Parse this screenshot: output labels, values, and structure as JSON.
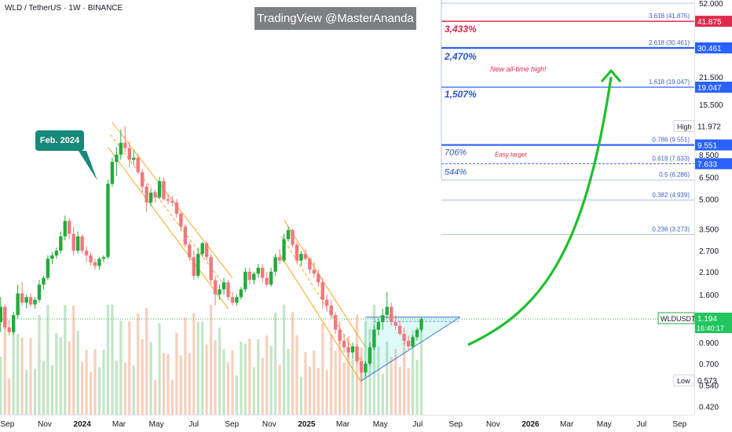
{
  "header": {
    "symbol": "WLD / TetherUS",
    "interval": "1W",
    "exchange": "BINANCE"
  },
  "watermark": "TradingView @MasterAnanda",
  "callout": "Feb. 2024",
  "annotations": {
    "ath": "New all-time high!",
    "easy": "Easy target"
  },
  "colors": {
    "up": "#22ab3a",
    "down": "#f0787d",
    "fib": "#5b7bd6",
    "blue_line": "#2962ff",
    "red_line": "#e0294e",
    "arrow": "#1fbf2d",
    "channel": "#f5a623",
    "triangle": "#3a6fd8",
    "price_label": "#22c55e"
  },
  "chart_data": {
    "type": "candlestick",
    "title": "WLD / TetherUS · 1W · BINANCE",
    "y_scale": "log",
    "y_range": [
      0.38,
      54
    ],
    "y_ticks": [
      "52.000",
      "21.500",
      "15.500",
      "8.500",
      "6.500",
      "5.000",
      "3.500",
      "2.700",
      "2.100",
      "1.600",
      "0.900",
      "0.700",
      "0.540",
      "0.420"
    ],
    "x_range": [
      "2023-08-20",
      "2026-09-25"
    ],
    "x_ticks": [
      "Sep",
      "Nov",
      "2024",
      "Mar",
      "May",
      "Jul",
      "Sep",
      "Nov",
      "2025",
      "Mar",
      "May",
      "Jul",
      "Sep",
      "Nov",
      "2026",
      "Mar",
      "May",
      "Jul",
      "Sep"
    ],
    "candles": [
      {
        "date": "2023-08-21",
        "o": 1.15,
        "h": 1.55,
        "l": 1.02,
        "c": 1.38
      },
      {
        "date": "2023-08-28",
        "o": 1.38,
        "h": 1.42,
        "l": 1.05,
        "c": 1.08
      },
      {
        "date": "2023-09-04",
        "o": 1.08,
        "h": 1.18,
        "l": 0.98,
        "c": 1.02
      },
      {
        "date": "2023-09-11",
        "o": 1.02,
        "h": 1.3,
        "l": 0.99,
        "c": 1.25
      },
      {
        "date": "2023-09-18",
        "o": 1.25,
        "h": 1.8,
        "l": 1.2,
        "c": 1.62
      },
      {
        "date": "2023-09-25",
        "o": 1.62,
        "h": 1.85,
        "l": 1.4,
        "c": 1.45
      },
      {
        "date": "2023-10-02",
        "o": 1.45,
        "h": 1.6,
        "l": 1.35,
        "c": 1.55
      },
      {
        "date": "2023-10-09",
        "o": 1.55,
        "h": 1.62,
        "l": 1.38,
        "c": 1.42
      },
      {
        "date": "2023-10-16",
        "o": 1.42,
        "h": 1.55,
        "l": 1.35,
        "c": 1.5
      },
      {
        "date": "2023-10-23",
        "o": 1.5,
        "h": 1.9,
        "l": 1.45,
        "c": 1.8
      },
      {
        "date": "2023-10-30",
        "o": 1.8,
        "h": 2.0,
        "l": 1.7,
        "c": 1.95
      },
      {
        "date": "2023-11-06",
        "o": 1.95,
        "h": 2.55,
        "l": 1.9,
        "c": 2.45
      },
      {
        "date": "2023-11-13",
        "o": 2.45,
        "h": 2.65,
        "l": 2.3,
        "c": 2.55
      },
      {
        "date": "2023-11-20",
        "o": 2.55,
        "h": 2.8,
        "l": 2.45,
        "c": 2.7
      },
      {
        "date": "2023-11-27",
        "o": 2.7,
        "h": 3.4,
        "l": 2.6,
        "c": 3.2
      },
      {
        "date": "2023-12-04",
        "o": 3.2,
        "h": 4.1,
        "l": 3.05,
        "c": 3.85
      },
      {
        "date": "2023-12-11",
        "o": 3.85,
        "h": 4.0,
        "l": 3.1,
        "c": 3.3
      },
      {
        "date": "2023-12-18",
        "o": 3.3,
        "h": 3.6,
        "l": 2.55,
        "c": 2.7
      },
      {
        "date": "2023-12-25",
        "o": 2.7,
        "h": 3.4,
        "l": 2.6,
        "c": 3.2
      },
      {
        "date": "2024-01-01",
        "o": 3.2,
        "h": 3.3,
        "l": 2.6,
        "c": 2.7
      },
      {
        "date": "2024-01-08",
        "o": 2.7,
        "h": 2.85,
        "l": 2.35,
        "c": 2.55
      },
      {
        "date": "2024-01-15",
        "o": 2.55,
        "h": 2.65,
        "l": 2.25,
        "c": 2.35
      },
      {
        "date": "2024-01-22",
        "o": 2.35,
        "h": 2.45,
        "l": 2.15,
        "c": 2.25
      },
      {
        "date": "2024-01-29",
        "o": 2.25,
        "h": 2.5,
        "l": 2.15,
        "c": 2.45
      },
      {
        "date": "2024-02-05",
        "o": 2.45,
        "h": 2.55,
        "l": 2.35,
        "c": 2.5
      },
      {
        "date": "2024-02-12",
        "o": 2.5,
        "h": 6.3,
        "l": 2.45,
        "c": 6.0
      },
      {
        "date": "2024-02-19",
        "o": 6.0,
        "h": 8.2,
        "l": 5.8,
        "c": 7.8
      },
      {
        "date": "2024-02-26",
        "o": 7.8,
        "h": 9.3,
        "l": 6.6,
        "c": 8.5
      },
      {
        "date": "2024-03-04",
        "o": 8.5,
        "h": 11.5,
        "l": 8.0,
        "c": 9.8
      },
      {
        "date": "2024-03-11",
        "o": 9.8,
        "h": 11.97,
        "l": 8.8,
        "c": 9.2
      },
      {
        "date": "2024-03-18",
        "o": 9.2,
        "h": 10.0,
        "l": 7.3,
        "c": 8.0
      },
      {
        "date": "2024-03-25",
        "o": 8.0,
        "h": 9.0,
        "l": 7.5,
        "c": 8.2
      },
      {
        "date": "2024-04-01",
        "o": 8.2,
        "h": 8.6,
        "l": 6.7,
        "c": 6.9
      },
      {
        "date": "2024-04-08",
        "o": 6.9,
        "h": 7.2,
        "l": 5.4,
        "c": 5.8
      },
      {
        "date": "2024-04-15",
        "o": 5.8,
        "h": 6.0,
        "l": 4.3,
        "c": 4.8
      },
      {
        "date": "2024-04-22",
        "o": 4.8,
        "h": 5.6,
        "l": 4.6,
        "c": 5.4
      },
      {
        "date": "2024-04-29",
        "o": 5.4,
        "h": 5.6,
        "l": 4.8,
        "c": 5.1
      },
      {
        "date": "2024-05-06",
        "o": 5.1,
        "h": 6.5,
        "l": 5.0,
        "c": 6.2
      },
      {
        "date": "2024-05-13",
        "o": 6.2,
        "h": 6.5,
        "l": 4.9,
        "c": 5.0
      },
      {
        "date": "2024-05-20",
        "o": 5.0,
        "h": 5.3,
        "l": 4.7,
        "c": 4.9
      },
      {
        "date": "2024-05-27",
        "o": 4.9,
        "h": 5.2,
        "l": 4.6,
        "c": 4.8
      },
      {
        "date": "2024-06-03",
        "o": 4.8,
        "h": 5.0,
        "l": 4.0,
        "c": 4.2
      },
      {
        "date": "2024-06-10",
        "o": 4.2,
        "h": 4.3,
        "l": 3.4,
        "c": 3.6
      },
      {
        "date": "2024-06-17",
        "o": 3.6,
        "h": 3.7,
        "l": 2.8,
        "c": 2.9
      },
      {
        "date": "2024-06-24",
        "o": 2.9,
        "h": 3.0,
        "l": 2.4,
        "c": 2.5
      },
      {
        "date": "2024-07-01",
        "o": 2.5,
        "h": 2.7,
        "l": 1.9,
        "c": 2.0
      },
      {
        "date": "2024-07-08",
        "o": 2.0,
        "h": 2.8,
        "l": 1.95,
        "c": 2.6
      },
      {
        "date": "2024-07-15",
        "o": 2.6,
        "h": 3.0,
        "l": 2.5,
        "c": 2.95
      },
      {
        "date": "2024-07-22",
        "o": 2.95,
        "h": 3.0,
        "l": 2.4,
        "c": 2.5
      },
      {
        "date": "2024-07-29",
        "o": 2.5,
        "h": 2.6,
        "l": 1.8,
        "c": 1.9
      },
      {
        "date": "2024-08-05",
        "o": 1.9,
        "h": 2.0,
        "l": 1.4,
        "c": 1.6
      },
      {
        "date": "2024-08-12",
        "o": 1.6,
        "h": 1.8,
        "l": 1.5,
        "c": 1.7
      },
      {
        "date": "2024-08-19",
        "o": 1.7,
        "h": 1.95,
        "l": 1.6,
        "c": 1.85
      },
      {
        "date": "2024-08-26",
        "o": 1.85,
        "h": 1.9,
        "l": 1.5,
        "c": 1.55
      },
      {
        "date": "2024-09-02",
        "o": 1.55,
        "h": 1.65,
        "l": 1.4,
        "c": 1.45
      },
      {
        "date": "2024-09-09",
        "o": 1.45,
        "h": 1.6,
        "l": 1.4,
        "c": 1.55
      },
      {
        "date": "2024-09-16",
        "o": 1.55,
        "h": 1.75,
        "l": 1.5,
        "c": 1.7
      },
      {
        "date": "2024-09-23",
        "o": 1.7,
        "h": 2.2,
        "l": 1.65,
        "c": 2.1
      },
      {
        "date": "2024-09-30",
        "o": 2.1,
        "h": 2.2,
        "l": 1.8,
        "c": 1.9
      },
      {
        "date": "2024-10-07",
        "o": 1.9,
        "h": 2.1,
        "l": 1.8,
        "c": 2.05
      },
      {
        "date": "2024-10-14",
        "o": 2.05,
        "h": 2.3,
        "l": 1.95,
        "c": 2.2
      },
      {
        "date": "2024-10-21",
        "o": 2.2,
        "h": 2.3,
        "l": 1.85,
        "c": 1.95
      },
      {
        "date": "2024-10-28",
        "o": 1.95,
        "h": 2.1,
        "l": 1.75,
        "c": 1.8
      },
      {
        "date": "2024-11-04",
        "o": 1.8,
        "h": 2.2,
        "l": 1.75,
        "c": 2.1
      },
      {
        "date": "2024-11-11",
        "o": 2.1,
        "h": 2.6,
        "l": 2.0,
        "c": 2.5
      },
      {
        "date": "2024-11-18",
        "o": 2.5,
        "h": 2.75,
        "l": 2.3,
        "c": 2.4
      },
      {
        "date": "2024-11-25",
        "o": 2.4,
        "h": 3.3,
        "l": 2.35,
        "c": 3.1
      },
      {
        "date": "2024-12-02",
        "o": 3.1,
        "h": 3.6,
        "l": 3.0,
        "c": 3.45
      },
      {
        "date": "2024-12-09",
        "o": 3.45,
        "h": 3.5,
        "l": 2.8,
        "c": 2.9
      },
      {
        "date": "2024-12-16",
        "o": 2.9,
        "h": 3.0,
        "l": 2.3,
        "c": 2.4
      },
      {
        "date": "2024-12-23",
        "o": 2.4,
        "h": 2.7,
        "l": 2.25,
        "c": 2.6
      },
      {
        "date": "2024-12-30",
        "o": 2.6,
        "h": 2.75,
        "l": 2.4,
        "c": 2.45
      },
      {
        "date": "2025-01-06",
        "o": 2.45,
        "h": 2.5,
        "l": 2.05,
        "c": 2.15
      },
      {
        "date": "2025-01-13",
        "o": 2.15,
        "h": 2.35,
        "l": 1.95,
        "c": 2.05
      },
      {
        "date": "2025-01-20",
        "o": 2.05,
        "h": 2.15,
        "l": 1.75,
        "c": 1.85
      },
      {
        "date": "2025-01-27",
        "o": 1.85,
        "h": 1.95,
        "l": 1.35,
        "c": 1.5
      },
      {
        "date": "2025-02-03",
        "o": 1.5,
        "h": 1.6,
        "l": 1.3,
        "c": 1.4
      },
      {
        "date": "2025-02-10",
        "o": 1.4,
        "h": 1.5,
        "l": 1.2,
        "c": 1.25
      },
      {
        "date": "2025-02-17",
        "o": 1.25,
        "h": 1.3,
        "l": 1.0,
        "c": 1.05
      },
      {
        "date": "2025-02-24",
        "o": 1.05,
        "h": 1.15,
        "l": 0.88,
        "c": 0.92
      },
      {
        "date": "2025-03-03",
        "o": 0.92,
        "h": 1.0,
        "l": 0.8,
        "c": 0.85
      },
      {
        "date": "2025-03-10",
        "o": 0.85,
        "h": 0.92,
        "l": 0.75,
        "c": 0.8
      },
      {
        "date": "2025-03-17",
        "o": 0.8,
        "h": 0.9,
        "l": 0.74,
        "c": 0.86
      },
      {
        "date": "2025-03-24",
        "o": 0.86,
        "h": 0.88,
        "l": 0.7,
        "c": 0.72
      },
      {
        "date": "2025-03-31",
        "o": 0.72,
        "h": 0.76,
        "l": 0.573,
        "c": 0.63
      },
      {
        "date": "2025-04-07",
        "o": 0.63,
        "h": 0.72,
        "l": 0.6,
        "c": 0.7
      },
      {
        "date": "2025-04-14",
        "o": 0.7,
        "h": 0.9,
        "l": 0.68,
        "c": 0.85
      },
      {
        "date": "2025-04-21",
        "o": 0.85,
        "h": 1.1,
        "l": 0.82,
        "c": 1.05
      },
      {
        "date": "2025-04-28",
        "o": 1.05,
        "h": 1.2,
        "l": 0.98,
        "c": 1.15
      },
      {
        "date": "2025-05-05",
        "o": 1.15,
        "h": 1.35,
        "l": 1.05,
        "c": 1.25
      },
      {
        "date": "2025-05-12",
        "o": 1.25,
        "h": 1.65,
        "l": 1.2,
        "c": 1.38
      },
      {
        "date": "2025-05-19",
        "o": 1.38,
        "h": 1.45,
        "l": 1.1,
        "c": 1.15
      },
      {
        "date": "2025-05-26",
        "o": 1.15,
        "h": 1.25,
        "l": 1.05,
        "c": 1.1
      },
      {
        "date": "2025-06-02",
        "o": 1.1,
        "h": 1.18,
        "l": 0.98,
        "c": 1.0
      },
      {
        "date": "2025-06-09",
        "o": 1.0,
        "h": 1.08,
        "l": 0.88,
        "c": 0.92
      },
      {
        "date": "2025-06-16",
        "o": 0.92,
        "h": 0.98,
        "l": 0.82,
        "c": 0.86
      },
      {
        "date": "2025-06-23",
        "o": 0.86,
        "h": 0.98,
        "l": 0.84,
        "c": 0.96
      },
      {
        "date": "2025-06-30",
        "o": 0.96,
        "h": 1.08,
        "l": 0.92,
        "c": 1.05
      },
      {
        "date": "2025-07-07",
        "o": 1.05,
        "h": 1.22,
        "l": 1.02,
        "c": 1.194
      }
    ],
    "fib_levels": [
      {
        "label": "3.618 (41.875)",
        "value": 41.875
      },
      {
        "label": "2.618 (30.461)",
        "value": 30.461
      },
      {
        "label": "1.618 (19.047)",
        "value": 19.047
      },
      {
        "label": "0.786 (9.551)",
        "value": 9.551
      },
      {
        "label": "0.618 (7.633)",
        "value": 7.633
      },
      {
        "label": "0.5 (6.286)",
        "value": 6.286
      },
      {
        "label": "0.382 (4.939)",
        "value": 4.939
      },
      {
        "label": "0.236 (3.273)",
        "value": 3.273
      }
    ],
    "targets": [
      {
        "label": "3,433%",
        "value": 41.875,
        "color": "red"
      },
      {
        "label": "2,470%",
        "value": 30.461,
        "color": "blue"
      },
      {
        "label": "1,507%",
        "value": 19.047,
        "color": "blue"
      },
      {
        "label": "706%",
        "value": 9.551,
        "color": "blue"
      },
      {
        "label": "544%",
        "value": 7.633,
        "color": "blue"
      }
    ],
    "price_tags": [
      {
        "text": "41.875",
        "value": 41.875,
        "style": "red"
      },
      {
        "text": "30.461",
        "value": 30.461,
        "style": "blue"
      },
      {
        "text": "19.047",
        "value": 19.047,
        "style": "blue"
      },
      {
        "text": "9.551",
        "value": 9.551,
        "style": "blue"
      },
      {
        "text": "7.633",
        "value": 7.633,
        "style": "blue"
      }
    ],
    "high": {
      "label": "High",
      "value": 11.972,
      "text": "11.972"
    },
    "low": {
      "label": "Low",
      "value": 0.573,
      "text": "0.573"
    },
    "last": {
      "symbol": "WLDUSDT",
      "value": 1.194,
      "text": "1.194",
      "countdown": "16:40:17"
    }
  }
}
